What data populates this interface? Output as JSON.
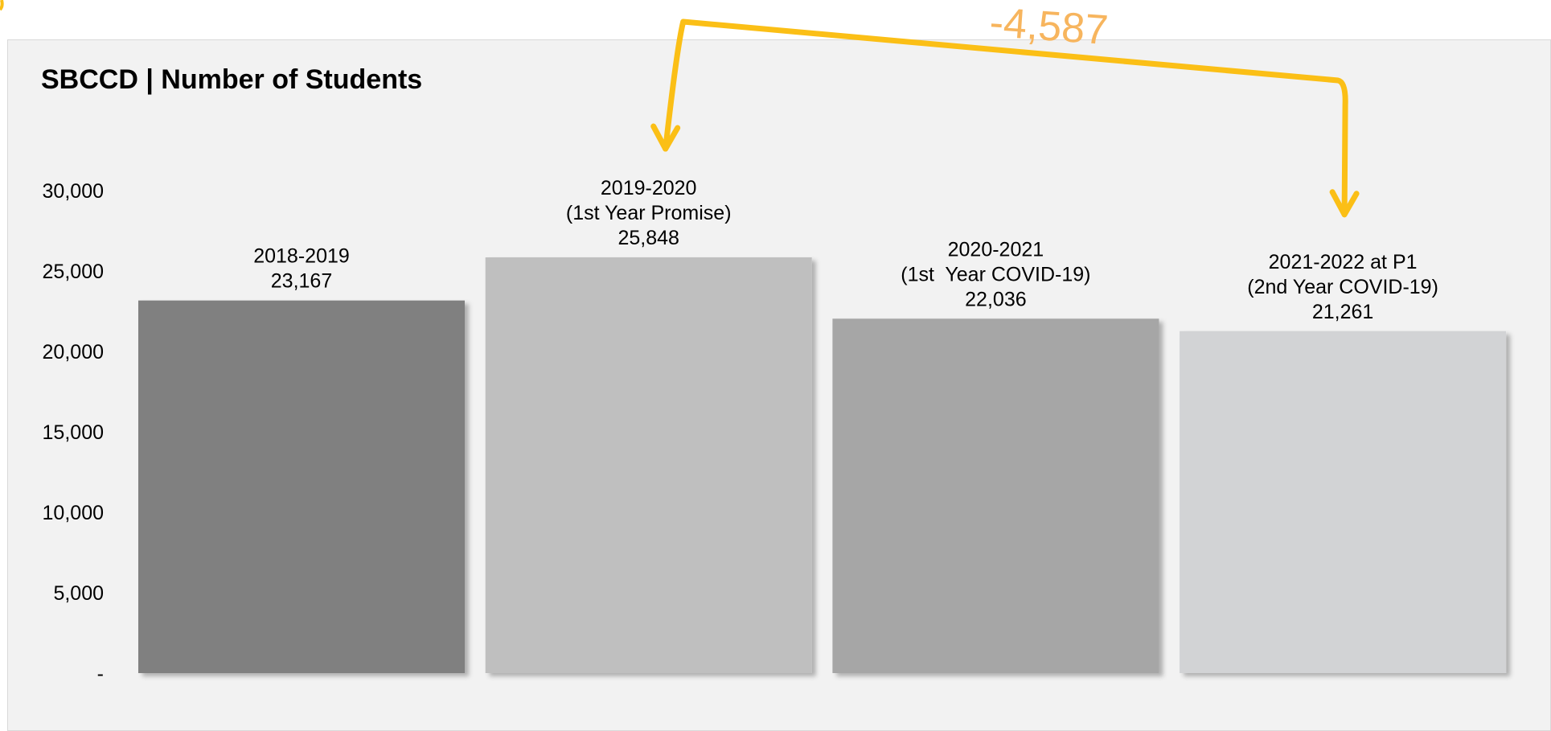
{
  "chart_data": {
    "type": "bar",
    "title": "SBCCD | Number of Students",
    "xlabel": "",
    "ylabel": "",
    "ylim": [
      0,
      30000
    ],
    "yticks": [
      0,
      5000,
      10000,
      15000,
      20000,
      25000,
      30000
    ],
    "ytick_labels": [
      "-",
      "5,000",
      "10,000",
      "15,000",
      "20,000",
      "25,000",
      "30,000"
    ],
    "grid": false,
    "legend": "none",
    "categories": [
      "2018-2019",
      "2019-2020",
      "2020-2021",
      "2021-2022 at P1"
    ],
    "bar_labels": [
      [
        "2018-2019",
        "23,167"
      ],
      [
        "2019-2020",
        "(1st Year Promise)",
        "25,848"
      ],
      [
        "2020-2021",
        "(1st  Year COVID-19)",
        "22,036"
      ],
      [
        "2021-2022 at P1",
        "(2nd Year COVID-19)",
        "21,261"
      ]
    ],
    "values": [
      23167,
      25848,
      22036,
      21261
    ],
    "colors": [
      "#808080",
      "#bfbfbf",
      "#a6a6a6",
      "#d2d3d5"
    ],
    "annotation": {
      "text": "-4,587",
      "from_category": "2019-2020",
      "to_category": "2021-2022 at P1",
      "arrow_color": "#fbbf16",
      "text_color": "#f7b55e"
    }
  }
}
